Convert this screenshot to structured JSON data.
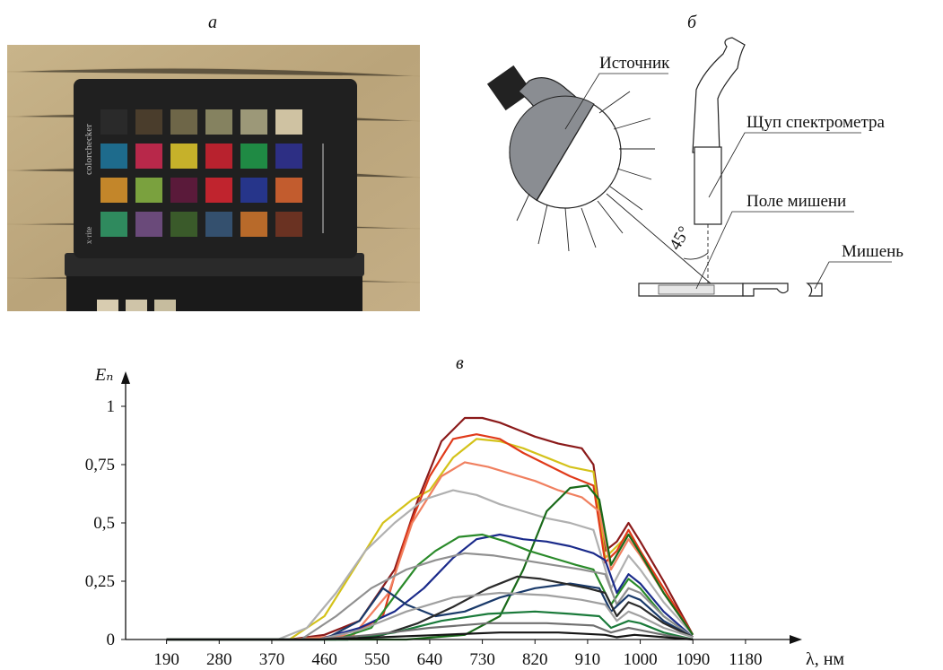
{
  "figure": {
    "panel_a_label": "а",
    "panel_b_label": "б",
    "panel_c_label": "в"
  },
  "photo": {
    "brand_text": "colorchecker",
    "maker_text": "x·rite",
    "patch_colors": [
      [
        "#2a2a2a",
        "#4a3d2c",
        "#6e6648",
        "#858260",
        "#9c9878",
        "#cfc2a2"
      ],
      [
        "#1e6b8c",
        "#b8284a",
        "#c6b12a",
        "#b8222e",
        "#1f8a44",
        "#2d2f84"
      ],
      [
        "#c3862a",
        "#7aa13e",
        "#5a1a3a",
        "#c0242e",
        "#26358a",
        "#c25c2e"
      ],
      [
        "#2f8a5e",
        "#6a4a7a",
        "#3a5a2a",
        "#34506e",
        "#b86a2a",
        "#6a3222"
      ]
    ]
  },
  "diagram": {
    "source_label": "Источник",
    "probe_label": "Щуп спектрометра",
    "field_label": "Поле мишени",
    "target_label": "Мишень",
    "angle_label": "45°"
  },
  "chart_data": {
    "type": "line",
    "ylabel": "Eₙ",
    "xlabel": "λ, нм",
    "x_ticks": [
      190,
      280,
      370,
      460,
      550,
      640,
      730,
      820,
      910,
      1000,
      1090,
      1180
    ],
    "y_ticks": [
      0,
      0.25,
      0.5,
      0.75,
      1
    ],
    "y_tick_labels": [
      "0",
      "0,25",
      "0,5",
      "0,75",
      "1"
    ],
    "xlim": [
      120,
      1240
    ],
    "ylim": [
      0,
      1.05
    ],
    "series": [
      {
        "color": "#8b1a1a",
        "x": [
          190,
          400,
          460,
          520,
          580,
          620,
          660,
          700,
          730,
          760,
          790,
          820,
          860,
          900,
          920,
          940,
          960,
          980,
          1000,
          1040,
          1090
        ],
        "y": [
          0,
          0,
          0.02,
          0.08,
          0.3,
          0.6,
          0.85,
          0.95,
          0.95,
          0.93,
          0.9,
          0.87,
          0.84,
          0.82,
          0.75,
          0.38,
          0.42,
          0.5,
          0.42,
          0.25,
          0.02
        ]
      },
      {
        "color": "#d4c21a",
        "x": [
          190,
          400,
          460,
          510,
          560,
          610,
          640,
          680,
          720,
          760,
          800,
          840,
          880,
          920,
          940,
          960,
          980,
          1000,
          1040,
          1090
        ],
        "y": [
          0,
          0,
          0.1,
          0.3,
          0.5,
          0.6,
          0.64,
          0.78,
          0.86,
          0.85,
          0.82,
          0.78,
          0.74,
          0.72,
          0.35,
          0.4,
          0.45,
          0.38,
          0.2,
          0.02
        ]
      },
      {
        "color": "#e03a1a",
        "x": [
          190,
          400,
          500,
          560,
          600,
          640,
          680,
          720,
          760,
          800,
          840,
          880,
          920,
          940,
          960,
          980,
          1000,
          1040,
          1090
        ],
        "y": [
          0,
          0,
          0.01,
          0.1,
          0.45,
          0.7,
          0.86,
          0.88,
          0.86,
          0.8,
          0.75,
          0.7,
          0.66,
          0.33,
          0.38,
          0.47,
          0.38,
          0.22,
          0.02
        ]
      },
      {
        "color": "#f08060",
        "x": [
          190,
          400,
          510,
          570,
          610,
          660,
          700,
          740,
          780,
          820,
          860,
          900,
          930,
          950,
          980,
          1000,
          1040,
          1090
        ],
        "y": [
          0,
          0,
          0.02,
          0.2,
          0.5,
          0.7,
          0.76,
          0.74,
          0.71,
          0.68,
          0.64,
          0.61,
          0.55,
          0.3,
          0.43,
          0.36,
          0.2,
          0.02
        ]
      },
      {
        "color": "#b0b0b0",
        "x": [
          190,
          380,
          430,
          480,
          530,
          580,
          630,
          680,
          720,
          760,
          800,
          840,
          880,
          920,
          950,
          980,
          1000,
          1040,
          1090
        ],
        "y": [
          0,
          0,
          0.05,
          0.2,
          0.38,
          0.5,
          0.6,
          0.64,
          0.62,
          0.58,
          0.55,
          0.52,
          0.5,
          0.47,
          0.22,
          0.36,
          0.3,
          0.16,
          0.02
        ]
      },
      {
        "color": "#1a6a1a",
        "x": [
          190,
          600,
          700,
          760,
          800,
          840,
          880,
          910,
          930,
          950,
          980,
          1000,
          1040,
          1090
        ],
        "y": [
          0,
          0,
          0.02,
          0.1,
          0.3,
          0.55,
          0.65,
          0.66,
          0.6,
          0.32,
          0.45,
          0.37,
          0.2,
          0.02
        ]
      },
      {
        "color": "#1a2a8a",
        "x": [
          190,
          450,
          520,
          580,
          630,
          680,
          720,
          760,
          800,
          840,
          880,
          920,
          940,
          960,
          980,
          1000,
          1040,
          1090
        ],
        "y": [
          0,
          0,
          0.05,
          0.12,
          0.22,
          0.35,
          0.43,
          0.45,
          0.43,
          0.42,
          0.4,
          0.37,
          0.34,
          0.2,
          0.28,
          0.24,
          0.12,
          0.01
        ]
      },
      {
        "color": "#2a8a2a",
        "x": [
          190,
          480,
          540,
          590,
          620,
          650,
          690,
          730,
          770,
          810,
          850,
          890,
          920,
          950,
          980,
          1000,
          1040,
          1090
        ],
        "y": [
          0,
          0,
          0.05,
          0.22,
          0.32,
          0.38,
          0.44,
          0.45,
          0.42,
          0.38,
          0.35,
          0.32,
          0.3,
          0.15,
          0.26,
          0.22,
          0.1,
          0.01
        ]
      },
      {
        "color": "#909090",
        "x": [
          190,
          420,
          480,
          540,
          600,
          650,
          700,
          750,
          800,
          850,
          900,
          940,
          960,
          980,
          1000,
          1040,
          1090
        ],
        "y": [
          0,
          0,
          0.1,
          0.22,
          0.3,
          0.34,
          0.37,
          0.36,
          0.34,
          0.32,
          0.3,
          0.28,
          0.15,
          0.22,
          0.2,
          0.1,
          0.01
        ]
      },
      {
        "color": "#1a3a6a",
        "x": [
          190,
          460,
          520,
          560,
          600,
          650,
          700,
          760,
          820,
          880,
          930,
          950,
          980,
          1000,
          1040,
          1090
        ],
        "y": [
          0,
          0,
          0.08,
          0.22,
          0.15,
          0.1,
          0.12,
          0.18,
          0.22,
          0.24,
          0.22,
          0.12,
          0.19,
          0.17,
          0.08,
          0.01
        ]
      },
      {
        "color": "#2a2a2a",
        "x": [
          190,
          500,
          560,
          620,
          680,
          740,
          790,
          830,
          870,
          910,
          940,
          960,
          980,
          1000,
          1040,
          1090
        ],
        "y": [
          0,
          0,
          0.02,
          0.07,
          0.14,
          0.22,
          0.27,
          0.26,
          0.24,
          0.22,
          0.2,
          0.1,
          0.16,
          0.14,
          0.07,
          0.01
        ]
      },
      {
        "color": "#a0a0a0",
        "x": [
          190,
          450,
          520,
          600,
          680,
          760,
          840,
          900,
          940,
          960,
          980,
          1000,
          1040,
          1090
        ],
        "y": [
          0,
          0,
          0.04,
          0.12,
          0.18,
          0.2,
          0.19,
          0.17,
          0.15,
          0.08,
          0.12,
          0.1,
          0.05,
          0.01
        ]
      },
      {
        "color": "#1a7a3a",
        "x": [
          190,
          500,
          580,
          660,
          740,
          820,
          880,
          930,
          950,
          980,
          1000,
          1040,
          1090
        ],
        "y": [
          0,
          0,
          0.03,
          0.08,
          0.11,
          0.12,
          0.11,
          0.1,
          0.05,
          0.08,
          0.07,
          0.03,
          0.0
        ]
      },
      {
        "color": "#707070",
        "x": [
          190,
          450,
          540,
          640,
          740,
          840,
          920,
          950,
          980,
          1000,
          1040,
          1090
        ],
        "y": [
          0,
          0,
          0.02,
          0.05,
          0.07,
          0.07,
          0.06,
          0.03,
          0.05,
          0.04,
          0.02,
          0.0
        ]
      },
      {
        "color": "#151515",
        "x": [
          190,
          450,
          560,
          660,
          760,
          860,
          940,
          960,
          990,
          1040,
          1090
        ],
        "y": [
          0,
          0,
          0.01,
          0.02,
          0.03,
          0.03,
          0.02,
          0.01,
          0.02,
          0.01,
          0.0
        ]
      }
    ]
  }
}
